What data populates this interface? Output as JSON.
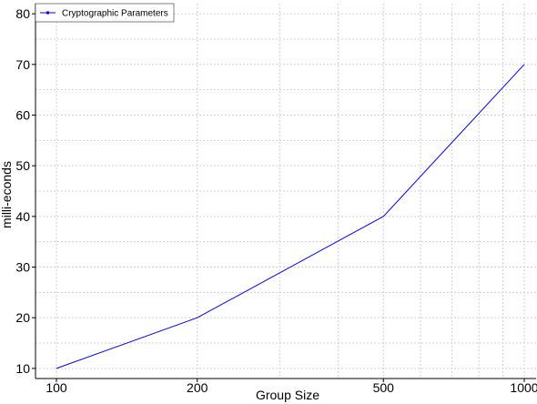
{
  "chart_data": {
    "type": "line",
    "title": "",
    "xlabel": "Group Size",
    "ylabel": "milli-econds",
    "x": [
      100,
      200,
      500,
      1000
    ],
    "x_scale": "log",
    "x_tick_labels": [
      "100",
      "200",
      "500",
      "1000"
    ],
    "ylim": [
      8,
      82
    ],
    "y_ticks": [
      10,
      20,
      30,
      40,
      50,
      60,
      70,
      80
    ],
    "y_tick_labels": [
      "10",
      "20",
      "30",
      "40",
      "50",
      "60",
      "70",
      "80"
    ],
    "grid": true,
    "legend_position": "top-left",
    "series": [
      {
        "name": "Cryptographic Parameters",
        "values": [
          10,
          20,
          40,
          70
        ],
        "color": "#0000ff"
      }
    ]
  }
}
